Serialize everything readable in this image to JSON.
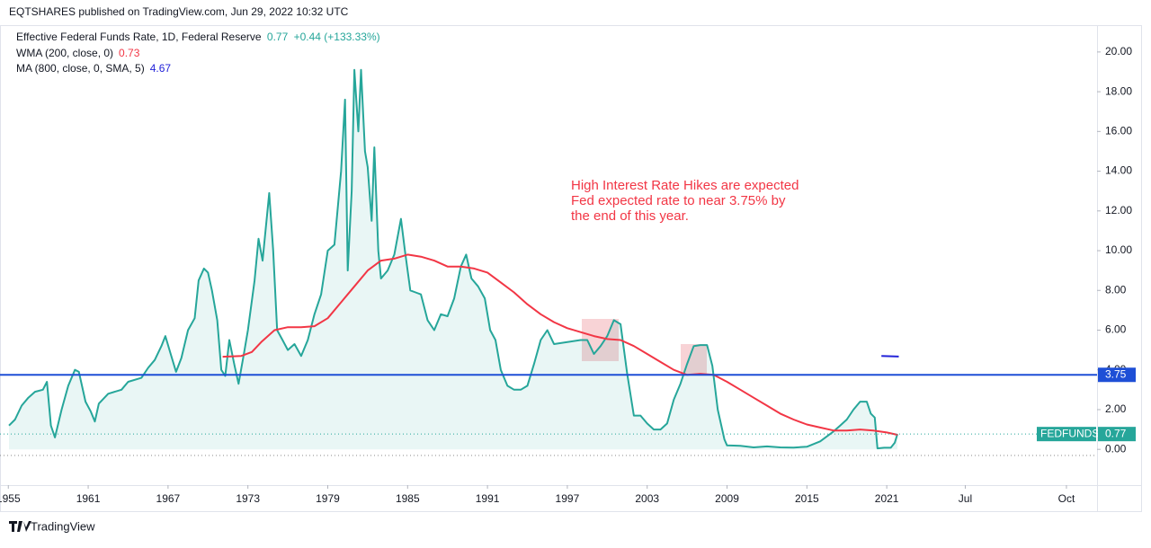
{
  "header": {
    "publisher": "EQTSHARES published on TradingView.com, Jun 29, 2022 10:32 UTC"
  },
  "footer": {
    "brand": "TradingView"
  },
  "chart_data": {
    "type": "line",
    "title": "Effective Federal Funds Rate, 1D, Federal Reserve",
    "change": "+0.44 (+133.33%)",
    "symbol_badge": "FEDFUNDS",
    "annotation": [
      "High Interest Rate Hikes are expected",
      "Fed expected rate to near 3.75% by",
      "the end of this year."
    ],
    "hline": {
      "value": 3.75,
      "color": "#1e4fd6"
    },
    "xlim": [
      1955.05,
      2036.8
    ],
    "xticks": [
      {
        "value": 1955,
        "label": "1955"
      },
      1961,
      1967,
      1973,
      1979,
      1985,
      1991,
      1997,
      2003,
      2009,
      2015,
      2021,
      {
        "value": 2026.9,
        "label": "Jul"
      },
      {
        "value": 2034.5,
        "label": "Oct"
      }
    ],
    "ylim": [
      -1.8,
      21.35
    ],
    "yticks": [
      {
        "value": 0,
        "label": "0.00"
      },
      {
        "value": 2,
        "label": "2.00"
      },
      {
        "value": 4,
        "label": "4.00"
      },
      {
        "value": 6,
        "label": "6.00"
      },
      {
        "value": 8,
        "label": "8.00"
      },
      {
        "value": 10,
        "label": "10.00"
      },
      {
        "value": 12,
        "label": "12.00"
      },
      {
        "value": 14,
        "label": "14.00"
      },
      {
        "value": 16,
        "label": "16.00"
      },
      {
        "value": 18,
        "label": "18.00"
      },
      {
        "value": 20,
        "label": "20.00"
      }
    ],
    "series": [
      {
        "name": "Effective Federal Funds Rate, 1D, Federal Reserve",
        "color": "#26a69a",
        "x": [
          1955.05,
          1955.5,
          1956,
          1956.5,
          1957,
          1957.6,
          1957.9,
          1958.2,
          1958.5,
          1959,
          1959.5,
          1960,
          1960.3,
          1960.8,
          1961.2,
          1961.5,
          1961.8,
          1962.5,
          1963.5,
          1964,
          1965,
          1965.5,
          1966,
          1966.5,
          1966.8,
          1967.2,
          1967.6,
          1968,
          1968.5,
          1969,
          1969.3,
          1969.7,
          1970,
          1970.3,
          1970.7,
          1971,
          1971.3,
          1971.6,
          1972,
          1972.3,
          1972.7,
          1973,
          1973.5,
          1973.8,
          1974.1,
          1974.6,
          1974.9,
          1975.2,
          1975.6,
          1976,
          1976.5,
          1977,
          1977.5,
          1978,
          1978.5,
          1979,
          1979.5,
          1980,
          1980.3,
          1980.5,
          1980.8,
          1981,
          1981.3,
          1981.5,
          1981.8,
          1982,
          1982.3,
          1982.5,
          1982.8,
          1983,
          1983.5,
          1984,
          1984.5,
          1984.8,
          1985.2,
          1985.6,
          1986,
          1986.5,
          1987,
          1987.5,
          1988,
          1988.5,
          1989,
          1989.4,
          1989.8,
          1990.3,
          1990.8,
          1991.2,
          1991.6,
          1992,
          1992.5,
          1993,
          1993.5,
          1994,
          1994.5,
          1995,
          1995.5,
          1996,
          1997,
          1998,
          1998.5,
          1999,
          1999.5,
          2000,
          2000.5,
          2001,
          2001.5,
          2002,
          2002.5,
          2003,
          2003.5,
          2004,
          2004.5,
          2005,
          2005.5,
          2006,
          2006.5,
          2007,
          2007.5,
          2007.9,
          2008.3,
          2008.8,
          2009,
          2010,
          2011,
          2012,
          2013,
          2014,
          2015,
          2016,
          2017,
          2017.5,
          2018,
          2018.5,
          2019,
          2019.5,
          2019.8,
          2020.1,
          2020.3,
          2020.8,
          2021.3,
          2021.6,
          2021.8
        ],
        "values": [
          1.2,
          1.5,
          2.2,
          2.6,
          2.9,
          3.0,
          3.4,
          1.2,
          0.6,
          2.0,
          3.2,
          4.0,
          3.9,
          2.4,
          1.9,
          1.4,
          2.3,
          2.8,
          3.0,
          3.4,
          3.6,
          4.1,
          4.5,
          5.2,
          5.7,
          4.8,
          3.9,
          4.6,
          6.0,
          6.6,
          8.5,
          9.1,
          8.9,
          8.0,
          6.5,
          4.0,
          3.7,
          5.5,
          4.2,
          3.3,
          4.8,
          6.0,
          8.5,
          10.6,
          9.5,
          12.9,
          10.0,
          6.0,
          5.5,
          5.0,
          5.3,
          4.7,
          5.5,
          6.8,
          7.8,
          10.0,
          10.3,
          14.0,
          17.6,
          9.0,
          13.0,
          19.1,
          16.0,
          19.1,
          15.0,
          14.2,
          11.5,
          15.2,
          10.0,
          8.6,
          9.0,
          9.8,
          11.6,
          10.0,
          8.0,
          7.9,
          7.8,
          6.5,
          6.0,
          6.8,
          6.7,
          7.6,
          9.2,
          9.8,
          8.6,
          8.2,
          7.6,
          6.0,
          5.5,
          4.0,
          3.2,
          3.0,
          3.0,
          3.2,
          4.3,
          5.5,
          6.0,
          5.3,
          5.4,
          5.5,
          5.5,
          4.8,
          5.2,
          5.7,
          6.5,
          6.3,
          3.8,
          1.7,
          1.7,
          1.3,
          1.0,
          1.0,
          1.3,
          2.5,
          3.3,
          4.3,
          5.2,
          5.25,
          5.25,
          4.2,
          2.0,
          0.5,
          0.2,
          0.18,
          0.1,
          0.15,
          0.1,
          0.09,
          0.13,
          0.4,
          0.9,
          1.2,
          1.5,
          2.0,
          2.4,
          2.4,
          1.8,
          1.6,
          0.05,
          0.08,
          0.08,
          0.33,
          0.77
        ]
      },
      {
        "name": "WMA (200, close, 0)",
        "color": "#f23645",
        "x": [
          1971.1,
          1972.5,
          1973.3,
          1974,
          1975,
          1976,
          1977,
          1978,
          1979,
          1980,
          1981,
          1982,
          1983,
          1984,
          1985,
          1986,
          1987,
          1988,
          1989,
          1990,
          1991,
          1992,
          1993,
          1994,
          1995,
          1996,
          1997,
          1998,
          1999,
          2000,
          2001,
          2002,
          2003,
          2004,
          2005,
          2006,
          2007,
          2008,
          2009,
          2010,
          2011,
          2012,
          2013,
          2014,
          2015,
          2016,
          2017,
          2018,
          2019,
          2020,
          2021,
          2021.8
        ],
        "values": [
          4.66,
          4.7,
          4.9,
          5.4,
          6.0,
          6.15,
          6.15,
          6.2,
          6.6,
          7.4,
          8.2,
          9.0,
          9.5,
          9.6,
          9.8,
          9.7,
          9.5,
          9.2,
          9.2,
          9.1,
          8.9,
          8.4,
          7.9,
          7.3,
          6.8,
          6.4,
          6.1,
          5.9,
          5.7,
          5.55,
          5.5,
          5.2,
          4.8,
          4.4,
          4.0,
          3.75,
          3.8,
          3.75,
          3.4,
          3.0,
          2.6,
          2.2,
          1.8,
          1.5,
          1.25,
          1.1,
          0.95,
          0.95,
          1.0,
          0.95,
          0.85,
          0.73
        ]
      },
      {
        "name": "MA (800, close, 0, SMA, 5)",
        "color": "#2323d9",
        "x": [
          2020.6,
          2021.9
        ],
        "values": [
          4.7,
          4.67
        ]
      }
    ]
  }
}
